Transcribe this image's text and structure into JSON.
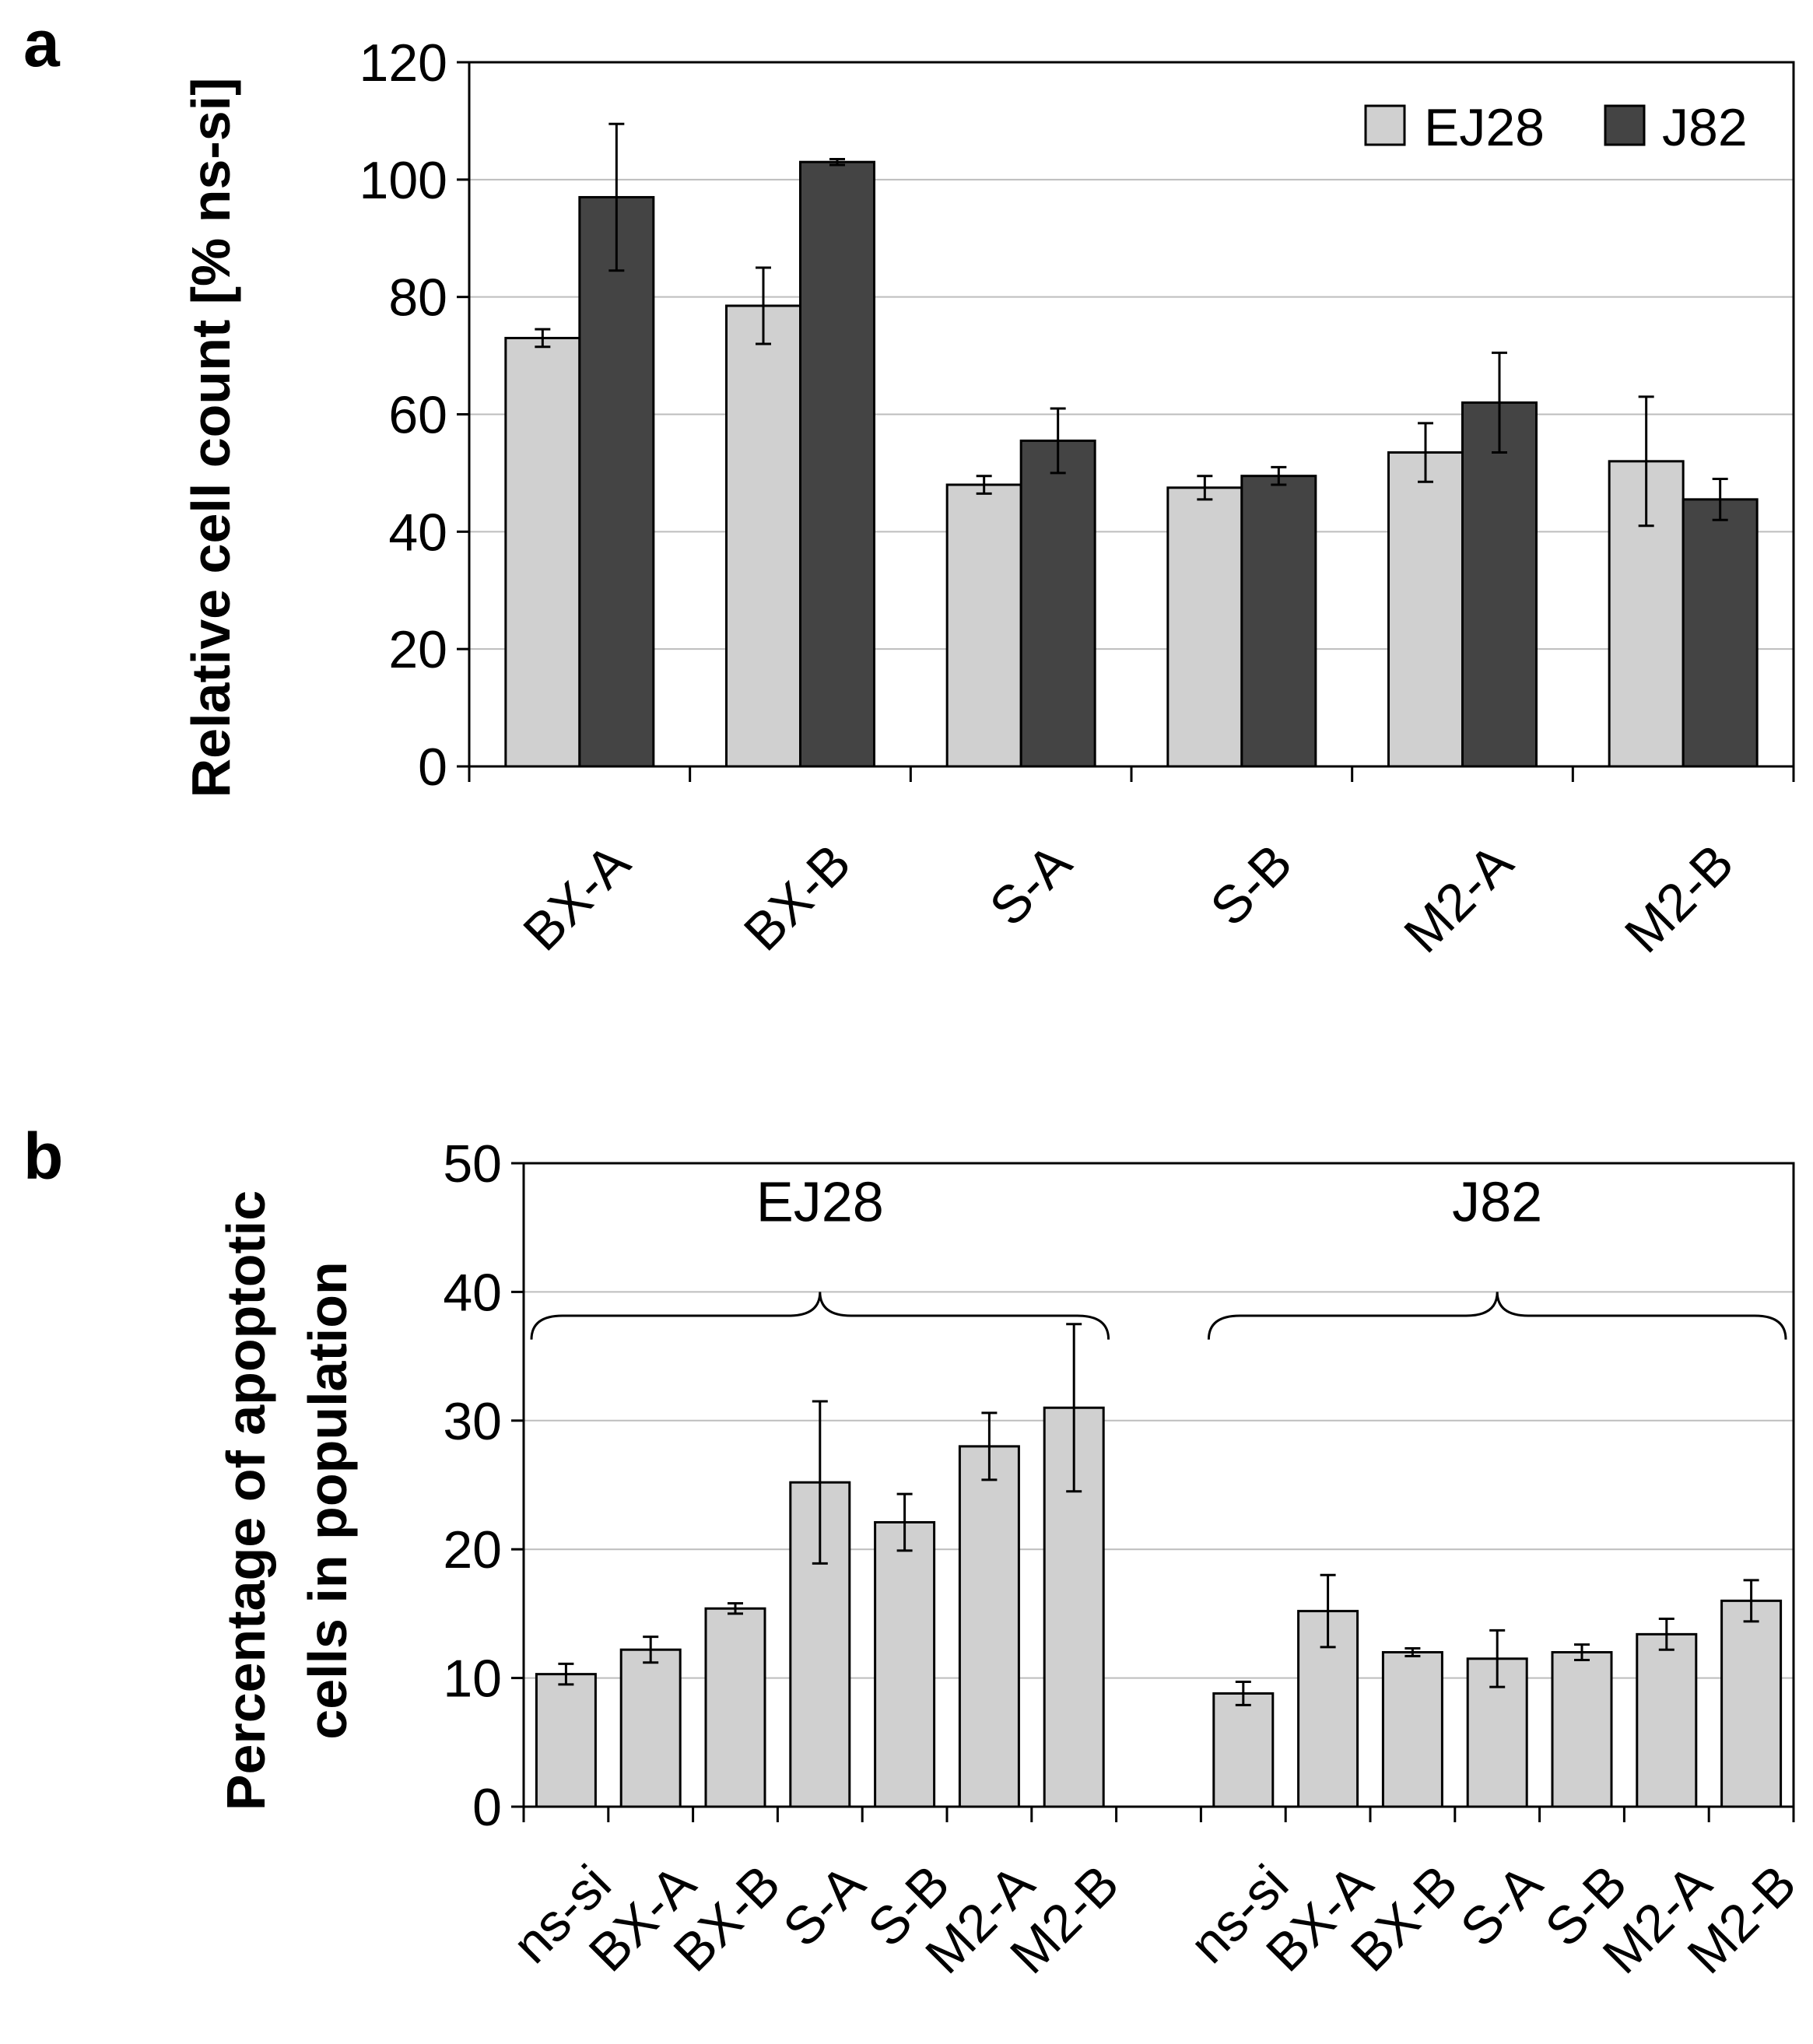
{
  "colors": {
    "light_bar": "#d0d0d0",
    "dark_bar": "#444444",
    "gridline": "#bdbdbd",
    "axis": "#000000"
  },
  "chart_data": [
    {
      "panel": "a",
      "type": "bar",
      "title": "",
      "xlabel": "",
      "ylabel": "Relative cell count [% ns-si]",
      "ylim": [
        0,
        120
      ],
      "yticks": [
        "0",
        "20",
        "40",
        "60",
        "80",
        "100",
        "120"
      ],
      "grid": true,
      "legend_position": "top-right",
      "categories": [
        "BX-A",
        "BX-B",
        "S-A",
        "S-B",
        "M2-A",
        "M2-B"
      ],
      "series": [
        {
          "name": "EJ28",
          "color": "#d0d0d0",
          "values": [
            73,
            78.5,
            48,
            47.5,
            53.5,
            52
          ],
          "errors": [
            1.5,
            6.5,
            1.5,
            2,
            5,
            11
          ]
        },
        {
          "name": "J82",
          "color": "#444444",
          "values": [
            97,
            103,
            55.5,
            49.5,
            62,
            45.5
          ],
          "errors": [
            12.5,
            0.5,
            5.5,
            1.5,
            8.5,
            3.5
          ]
        }
      ]
    },
    {
      "panel": "b",
      "type": "bar",
      "title": "",
      "xlabel": "",
      "ylabel": [
        "Percentage of apoptotic",
        "cells in population"
      ],
      "ylim": [
        0,
        50
      ],
      "yticks": [
        "0",
        "10",
        "20",
        "30",
        "40",
        "50"
      ],
      "grid": true,
      "groups": [
        {
          "name": "EJ28",
          "categories": [
            "ns-si",
            "BX-A",
            "BX-B",
            "S-A",
            "S-B",
            "M2-A",
            "M2-B"
          ],
          "values": [
            10.3,
            12.2,
            15.4,
            25.2,
            22.1,
            28,
            31
          ],
          "errors": [
            0.8,
            1,
            0.4,
            6.3,
            2.2,
            2.6,
            6.5
          ]
        },
        {
          "name": "J82",
          "categories": [
            "ns-si",
            "BX-A",
            "BX-B",
            "S-A",
            "S-B",
            "M2-A",
            "M2-B"
          ],
          "values": [
            8.8,
            15.2,
            12,
            11.5,
            12,
            13.4,
            16
          ],
          "errors": [
            0.9,
            2.8,
            0.3,
            2.2,
            0.6,
            1.2,
            1.6
          ]
        }
      ]
    }
  ]
}
